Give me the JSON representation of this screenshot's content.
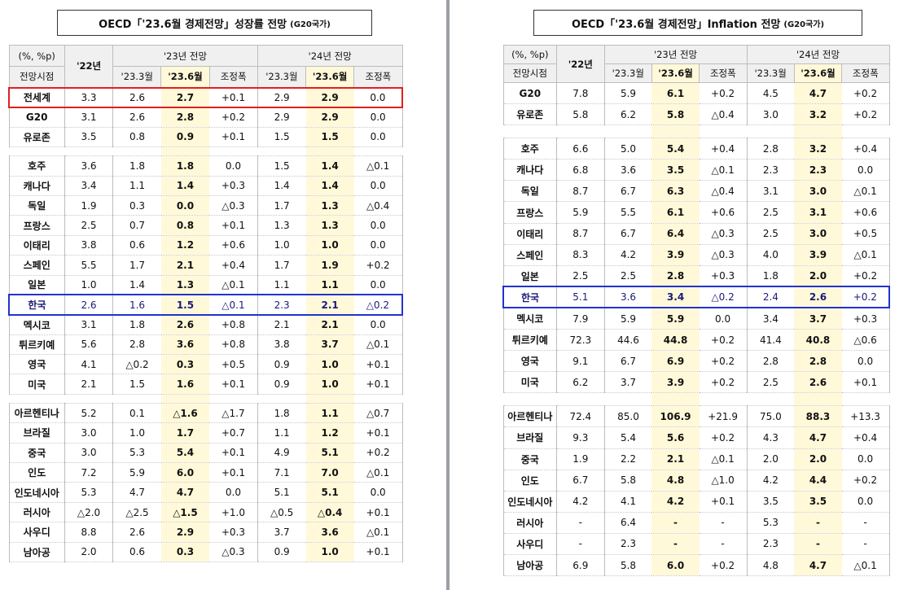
{
  "growth": {
    "title": "OECD「'23.6월 경제전망」성장률 전망",
    "title_suffix": "(G20국가)",
    "headers": {
      "unit": "(%, %p)",
      "basis": "전망시점",
      "y22": "'22년",
      "g23": "'23년 전망",
      "g24": "'24년 전망",
      "sub": [
        "'23.3월",
        "'23.6월",
        "조정폭",
        "'23.3월",
        "'23.6월",
        "조정폭"
      ]
    },
    "groups": [
      [
        {
          "name": "전세계",
          "v": [
            "3.3",
            "2.6",
            "2.7",
            "+0.1",
            "2.9",
            "2.9",
            "0.0"
          ],
          "box": "red"
        },
        {
          "name": "G20",
          "v": [
            "3.1",
            "2.6",
            "2.8",
            "+0.2",
            "2.9",
            "2.9",
            "0.0"
          ]
        },
        {
          "name": "유로존",
          "v": [
            "3.5",
            "0.8",
            "0.9",
            "+0.1",
            "1.5",
            "1.5",
            "0.0"
          ]
        }
      ],
      [
        {
          "name": "호주",
          "v": [
            "3.6",
            "1.8",
            "1.8",
            "0.0",
            "1.5",
            "1.4",
            "△0.1"
          ]
        },
        {
          "name": "캐나다",
          "v": [
            "3.4",
            "1.1",
            "1.4",
            "+0.3",
            "1.4",
            "1.4",
            "0.0"
          ]
        },
        {
          "name": "독일",
          "v": [
            "1.9",
            "0.3",
            "0.0",
            "△0.3",
            "1.7",
            "1.3",
            "△0.4"
          ]
        },
        {
          "name": "프랑스",
          "v": [
            "2.5",
            "0.7",
            "0.8",
            "+0.1",
            "1.3",
            "1.3",
            "0.0"
          ]
        },
        {
          "name": "이태리",
          "v": [
            "3.8",
            "0.6",
            "1.2",
            "+0.6",
            "1.0",
            "1.0",
            "0.0"
          ]
        },
        {
          "name": "스페인",
          "v": [
            "5.5",
            "1.7",
            "2.1",
            "+0.4",
            "1.7",
            "1.9",
            "+0.2"
          ]
        },
        {
          "name": "일본",
          "v": [
            "1.0",
            "1.4",
            "1.3",
            "△0.1",
            "1.1",
            "1.1",
            "0.0"
          ]
        },
        {
          "name": "한국",
          "v": [
            "2.6",
            "1.6",
            "1.5",
            "△0.1",
            "2.3",
            "2.1",
            "△0.2"
          ],
          "box": "blue"
        },
        {
          "name": "멕시코",
          "v": [
            "3.1",
            "1.8",
            "2.6",
            "+0.8",
            "2.1",
            "2.1",
            "0.0"
          ]
        },
        {
          "name": "튀르키예",
          "v": [
            "5.6",
            "2.8",
            "3.6",
            "+0.8",
            "3.8",
            "3.7",
            "△0.1"
          ]
        },
        {
          "name": "영국",
          "v": [
            "4.1",
            "△0.2",
            "0.3",
            "+0.5",
            "0.9",
            "1.0",
            "+0.1"
          ]
        },
        {
          "name": "미국",
          "v": [
            "2.1",
            "1.5",
            "1.6",
            "+0.1",
            "0.9",
            "1.0",
            "+0.1"
          ]
        }
      ],
      [
        {
          "name": "아르헨티나",
          "v": [
            "5.2",
            "0.1",
            "△1.6",
            "△1.7",
            "1.8",
            "1.1",
            "△0.7"
          ]
        },
        {
          "name": "브라질",
          "v": [
            "3.0",
            "1.0",
            "1.7",
            "+0.7",
            "1.1",
            "1.2",
            "+0.1"
          ]
        },
        {
          "name": "중국",
          "v": [
            "3.0",
            "5.3",
            "5.4",
            "+0.1",
            "4.9",
            "5.1",
            "+0.2"
          ]
        },
        {
          "name": "인도",
          "v": [
            "7.2",
            "5.9",
            "6.0",
            "+0.1",
            "7.1",
            "7.0",
            "△0.1"
          ]
        },
        {
          "name": "인도네시아",
          "v": [
            "5.3",
            "4.7",
            "4.7",
            "0.0",
            "5.1",
            "5.1",
            "0.0"
          ]
        },
        {
          "name": "러시아",
          "v": [
            "△2.0",
            "△2.5",
            "△1.5",
            "+1.0",
            "△0.5",
            "△0.4",
            "+0.1"
          ]
        },
        {
          "name": "사우디",
          "v": [
            "8.8",
            "2.6",
            "2.9",
            "+0.3",
            "3.7",
            "3.6",
            "△0.1"
          ]
        },
        {
          "name": "남아공",
          "v": [
            "2.0",
            "0.6",
            "0.3",
            "△0.3",
            "0.9",
            "1.0",
            "+0.1"
          ]
        }
      ]
    ]
  },
  "inflation": {
    "title": "OECD「'23.6월 경제전망」Inflation 전망",
    "title_suffix": "(G20국가)",
    "headers": {
      "unit": "(%, %p)",
      "basis": "전망시점",
      "y22": "'22년",
      "g23": "'23년 전망",
      "g24": "'24년 전망",
      "sub": [
        "'23.3월",
        "'23.6월",
        "조정폭",
        "'23.3월",
        "'23.6월",
        "조정폭"
      ]
    },
    "groups": [
      [
        {
          "name": "G20",
          "v": [
            "7.8",
            "5.9",
            "6.1",
            "+0.2",
            "4.5",
            "4.7",
            "+0.2"
          ]
        },
        {
          "name": "유로존",
          "v": [
            "5.8",
            "6.2",
            "5.8",
            "△0.4",
            "3.0",
            "3.2",
            "+0.2"
          ]
        }
      ],
      [
        {
          "name": "호주",
          "v": [
            "6.6",
            "5.0",
            "5.4",
            "+0.4",
            "2.8",
            "3.2",
            "+0.4"
          ]
        },
        {
          "name": "캐나다",
          "v": [
            "6.8",
            "3.6",
            "3.5",
            "△0.1",
            "2.3",
            "2.3",
            "0.0"
          ]
        },
        {
          "name": "독일",
          "v": [
            "8.7",
            "6.7",
            "6.3",
            "△0.4",
            "3.1",
            "3.0",
            "△0.1"
          ]
        },
        {
          "name": "프랑스",
          "v": [
            "5.9",
            "5.5",
            "6.1",
            "+0.6",
            "2.5",
            "3.1",
            "+0.6"
          ]
        },
        {
          "name": "이태리",
          "v": [
            "8.7",
            "6.7",
            "6.4",
            "△0.3",
            "2.5",
            "3.0",
            "+0.5"
          ]
        },
        {
          "name": "스페인",
          "v": [
            "8.3",
            "4.2",
            "3.9",
            "△0.3",
            "4.0",
            "3.9",
            "△0.1"
          ]
        },
        {
          "name": "일본",
          "v": [
            "2.5",
            "2.5",
            "2.8",
            "+0.3",
            "1.8",
            "2.0",
            "+0.2"
          ]
        },
        {
          "name": "한국",
          "v": [
            "5.1",
            "3.6",
            "3.4",
            "△0.2",
            "2.4",
            "2.6",
            "+0.2"
          ],
          "box": "blue"
        },
        {
          "name": "멕시코",
          "v": [
            "7.9",
            "5.9",
            "5.9",
            "0.0",
            "3.4",
            "3.7",
            "+0.3"
          ]
        },
        {
          "name": "튀르키예",
          "v": [
            "72.3",
            "44.6",
            "44.8",
            "+0.2",
            "41.4",
            "40.8",
            "△0.6"
          ]
        },
        {
          "name": "영국",
          "v": [
            "9.1",
            "6.7",
            "6.9",
            "+0.2",
            "2.8",
            "2.8",
            "0.0"
          ]
        },
        {
          "name": "미국",
          "v": [
            "6.2",
            "3.7",
            "3.9",
            "+0.2",
            "2.5",
            "2.6",
            "+0.1"
          ]
        }
      ],
      [
        {
          "name": "아르헨티나",
          "v": [
            "72.4",
            "85.0",
            "106.9",
            "+21.9",
            "75.0",
            "88.3",
            "+13.3"
          ]
        },
        {
          "name": "브라질",
          "v": [
            "9.3",
            "5.4",
            "5.6",
            "+0.2",
            "4.3",
            "4.7",
            "+0.4"
          ]
        },
        {
          "name": "중국",
          "v": [
            "1.9",
            "2.2",
            "2.1",
            "△0.1",
            "2.0",
            "2.0",
            "0.0"
          ]
        },
        {
          "name": "인도",
          "v": [
            "6.7",
            "5.8",
            "4.8",
            "△1.0",
            "4.2",
            "4.4",
            "+0.2"
          ]
        },
        {
          "name": "인도네시아",
          "v": [
            "4.2",
            "4.1",
            "4.2",
            "+0.1",
            "3.5",
            "3.5",
            "0.0"
          ]
        },
        {
          "name": "러시아",
          "v": [
            "-",
            "6.4",
            "-",
            "-",
            "5.3",
            "-",
            "-"
          ]
        },
        {
          "name": "사우디",
          "v": [
            "-",
            "2.3",
            "-",
            "-",
            "2.3",
            "-",
            "-"
          ]
        },
        {
          "name": "남아공",
          "v": [
            "6.9",
            "5.8",
            "6.0",
            "+0.2",
            "4.8",
            "4.7",
            "△0.1"
          ]
        }
      ]
    ]
  }
}
